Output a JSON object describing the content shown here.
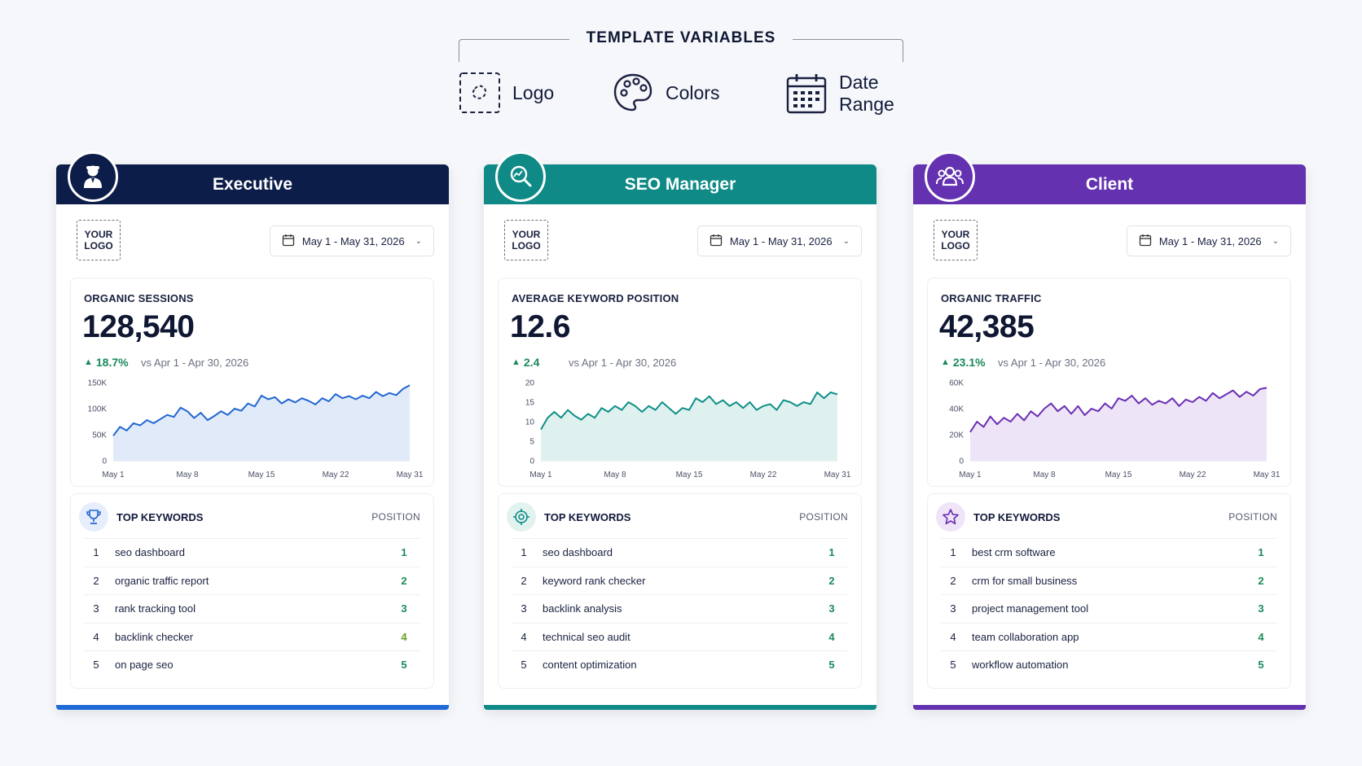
{
  "template_variables": {
    "title": "TEMPLATE VARIABLES",
    "items": [
      {
        "label": "Logo",
        "icon": "dashed-logo-icon"
      },
      {
        "label": "Colors",
        "icon": "palette-icon"
      },
      {
        "label": "Date Range",
        "icon": "calendar-icon"
      }
    ]
  },
  "cards": [
    {
      "title": "Executive",
      "avatar_icon": "executive-user-icon",
      "colors": {
        "header": "#0c1d4a",
        "bottom": "#1f6ad6",
        "line": "#2166d4",
        "fill": "#dbe6f7",
        "kw_icon_bg": "#e7eefb",
        "kw_icon": "#2166d4"
      },
      "logo_line1": "YOUR",
      "logo_line2": "LOGO",
      "date_range": "May 1 - May 31, 2026",
      "metric_label": "ORGANIC SESSIONS",
      "metric_value": "128,540",
      "delta": "18.7%",
      "compare": "vs Apr 1 - Apr 30, 2026",
      "keywords_title": "TOP KEYWORDS",
      "keywords_icon": "trophy-icon",
      "position_label": "POSITION",
      "keywords": [
        {
          "rank": "1",
          "term": "seo dashboard",
          "position": "1"
        },
        {
          "rank": "2",
          "term": "organic traffic report",
          "position": "2"
        },
        {
          "rank": "3",
          "term": "rank tracking tool",
          "position": "3"
        },
        {
          "rank": "4",
          "term": "backlink checker",
          "position": "4"
        },
        {
          "rank": "5",
          "term": "on page seo",
          "position": "5"
        }
      ],
      "chart_data": {
        "type": "area",
        "x_ticks": [
          "May 1",
          "May 8",
          "May 15",
          "May 22",
          "May 31"
        ],
        "y_ticks": [
          "0",
          "50K",
          "100K",
          "150K"
        ],
        "ylim": [
          0,
          150000
        ],
        "values": [
          48000,
          65000,
          58000,
          72000,
          68000,
          78000,
          72000,
          80000,
          88000,
          84000,
          102000,
          95000,
          82000,
          92000,
          78000,
          86000,
          95000,
          88000,
          100000,
          96000,
          110000,
          104000,
          125000,
          118000,
          122000,
          110000,
          118000,
          112000,
          120000,
          115000,
          108000,
          120000,
          114000,
          128000,
          120000,
          124000,
          118000,
          125000,
          120000,
          132000,
          124000,
          130000,
          126000,
          138000,
          145000
        ]
      }
    },
    {
      "title": "SEO Manager",
      "avatar_icon": "seo-search-icon",
      "colors": {
        "header": "#0f8a86",
        "bottom": "#0f8a86",
        "line": "#0f8f88",
        "fill": "#d9efeb",
        "kw_icon_bg": "#e2f2ef",
        "kw_icon": "#0f8f88"
      },
      "logo_line1": "YOUR",
      "logo_line2": "LOGO",
      "date_range": "May 1 - May 31, 2026",
      "metric_label": "AVERAGE KEYWORD POSITION",
      "metric_value": "12.6",
      "delta": "2.4",
      "compare": "vs Apr 1 - Apr 30, 2026",
      "keywords_title": "TOP KEYWORDS",
      "keywords_icon": "target-icon",
      "position_label": "POSITION",
      "keywords": [
        {
          "rank": "1",
          "term": "seo dashboard",
          "position": "1"
        },
        {
          "rank": "2",
          "term": "keyword rank checker",
          "position": "2"
        },
        {
          "rank": "3",
          "term": "backlink analysis",
          "position": "3"
        },
        {
          "rank": "4",
          "term": "technical seo audit",
          "position": "4"
        },
        {
          "rank": "5",
          "term": "content optimization",
          "position": "5"
        }
      ],
      "chart_data": {
        "type": "area",
        "x_ticks": [
          "May 1",
          "May 8",
          "May 15",
          "May 22",
          "May 31"
        ],
        "y_ticks": [
          "0",
          "5",
          "10",
          "15",
          "20"
        ],
        "ylim": [
          0,
          20
        ],
        "values": [
          8,
          11,
          12.5,
          11,
          13,
          11.5,
          10.5,
          12,
          11,
          13.5,
          12.5,
          14,
          13,
          15,
          14,
          12.5,
          14,
          13,
          15,
          13.5,
          12,
          13.5,
          13,
          16,
          15,
          16.5,
          14.5,
          15.5,
          14,
          15,
          13.5,
          15,
          13,
          14,
          14.5,
          13,
          15.5,
          15,
          14,
          15,
          14.5,
          17.5,
          16,
          17.5,
          17
        ]
      }
    },
    {
      "title": "Client",
      "avatar_icon": "client-group-icon",
      "colors": {
        "header": "#6431b0",
        "bottom": "#6431b0",
        "line": "#6a2fb3",
        "fill": "#ebdff6",
        "kw_icon_bg": "#efe4f8",
        "kw_icon": "#6a2fb3"
      },
      "logo_line1": "YOUR",
      "logo_line2": "LOGO",
      "date_range": "May 1 - May 31, 2026",
      "metric_label": "ORGANIC TRAFFIC",
      "metric_value": "42,385",
      "delta": "23.1%",
      "compare": "vs Apr 1 - Apr 30, 2026",
      "keywords_title": "TOP KEYWORDS",
      "keywords_icon": "star-icon",
      "position_label": "POSITION",
      "keywords": [
        {
          "rank": "1",
          "term": "best crm software",
          "position": "1"
        },
        {
          "rank": "2",
          "term": "crm for small business",
          "position": "2"
        },
        {
          "rank": "3",
          "term": "project management tool",
          "position": "3"
        },
        {
          "rank": "4",
          "term": "team collaboration app",
          "position": "4"
        },
        {
          "rank": "5",
          "term": "workflow automation",
          "position": "5"
        }
      ],
      "chart_data": {
        "type": "area",
        "x_ticks": [
          "May 1",
          "May 8",
          "May 15",
          "May 22",
          "May 31"
        ],
        "y_ticks": [
          "0",
          "20K",
          "40K",
          "60K"
        ],
        "ylim": [
          0,
          60000
        ],
        "values": [
          22000,
          30000,
          26000,
          34000,
          28000,
          33000,
          30000,
          36000,
          31000,
          38000,
          34000,
          40000,
          44000,
          38000,
          42000,
          36000,
          42000,
          35000,
          40000,
          38000,
          44000,
          40000,
          48000,
          46000,
          50000,
          44000,
          48000,
          43000,
          46000,
          44000,
          48000,
          42000,
          47000,
          45000,
          49000,
          46000,
          52000,
          48000,
          51000,
          54000,
          49000,
          53000,
          50000,
          55000,
          56000
        ]
      }
    }
  ]
}
